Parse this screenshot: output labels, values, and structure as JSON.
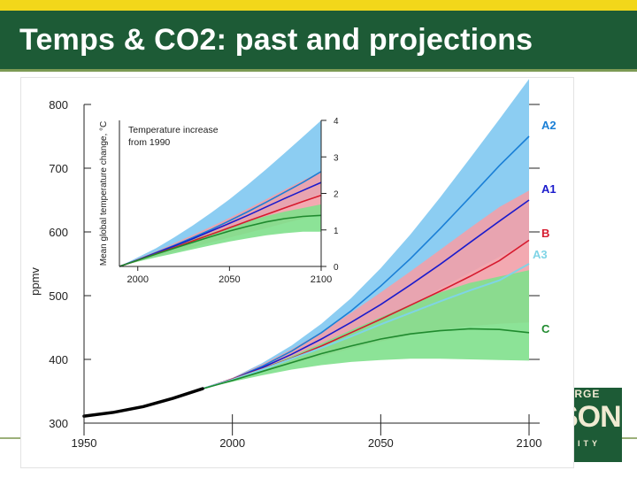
{
  "slide": {
    "title": "Temps & CO2: past and projections"
  },
  "logo": {
    "line1": "ORGE",
    "line2": "SON",
    "line3": "SITY"
  },
  "colors": {
    "header_bg": "#1d5b36",
    "accent_yellow": "#f2d71a",
    "A2": "#1a7fd6",
    "A2_band": "#8ccdf2",
    "A1": "#1b1bcc",
    "B": "#d61a2e",
    "B_band": "#f2a0a8",
    "A3": "#7fd4e6",
    "C": "#1f8a2e",
    "C_band": "#7fe08c",
    "historical": "#000000"
  },
  "chart_data": [
    {
      "type": "line",
      "title": "",
      "xlabel": "",
      "ylabel": "ppmv",
      "xlim": [
        1950,
        2100
      ],
      "ylim": [
        300,
        800
      ],
      "x_ticks": [
        "1950",
        "2000",
        "2050",
        "2100"
      ],
      "y_ticks": [
        "300",
        "400",
        "500",
        "600",
        "700",
        "800"
      ],
      "historical": {
        "x": [
          1950,
          1960,
          1970,
          1980,
          1990
        ],
        "values": [
          311,
          317,
          326,
          339,
          354
        ]
      },
      "series": [
        {
          "name": "A2",
          "x": [
            1990,
            2000,
            2010,
            2020,
            2030,
            2040,
            2050,
            2060,
            2070,
            2080,
            2090,
            2100
          ],
          "values": [
            354,
            369,
            389,
            413,
            442,
            476,
            515,
            558,
            605,
            654,
            704,
            750
          ]
        },
        {
          "name": "A1",
          "x": [
            1990,
            2000,
            2010,
            2020,
            2030,
            2040,
            2050,
            2060,
            2070,
            2080,
            2090,
            2100
          ],
          "values": [
            354,
            369,
            387,
            408,
            432,
            458,
            486,
            517,
            549,
            583,
            617,
            650
          ]
        },
        {
          "name": "B",
          "x": [
            1990,
            2000,
            2010,
            2020,
            2030,
            2040,
            2050,
            2060,
            2070,
            2080,
            2090,
            2100
          ],
          "values": [
            354,
            369,
            385,
            402,
            421,
            442,
            463,
            485,
            507,
            530,
            555,
            587
          ]
        },
        {
          "name": "A3",
          "x": [
            1990,
            2000,
            2010,
            2020,
            2030,
            2040,
            2050,
            2060,
            2070,
            2080,
            2090,
            2100
          ],
          "values": [
            354,
            368,
            384,
            401,
            418,
            436,
            455,
            473,
            491,
            508,
            524,
            550
          ]
        },
        {
          "name": "C",
          "x": [
            1990,
            2000,
            2010,
            2020,
            2030,
            2040,
            2050,
            2060,
            2070,
            2080,
            2090,
            2100
          ],
          "values": [
            354,
            367,
            381,
            395,
            409,
            421,
            432,
            440,
            445,
            448,
            447,
            442
          ]
        }
      ],
      "bands": [
        {
          "name": "A2",
          "x": [
            1990,
            2000,
            2010,
            2020,
            2030,
            2040,
            2050,
            2060,
            2070,
            2080,
            2090,
            2100
          ],
          "low": [
            354,
            368,
            383,
            399,
            417,
            438,
            460,
            485,
            511,
            536,
            561,
            586
          ],
          "high": [
            354,
            371,
            394,
            422,
            456,
            496,
            543,
            596,
            654,
            715,
            777,
            840
          ]
        },
        {
          "name": "B",
          "x": [
            1990,
            2000,
            2010,
            2020,
            2030,
            2040,
            2050,
            2060,
            2070,
            2080,
            2090,
            2100
          ],
          "low": [
            354,
            367,
            380,
            393,
            405,
            417,
            428,
            438,
            446,
            452,
            456,
            458
          ],
          "high": [
            354,
            371,
            392,
            416,
            443,
            473,
            505,
            538,
            572,
            606,
            639,
            665
          ]
        },
        {
          "name": "C",
          "x": [
            1990,
            2000,
            2010,
            2020,
            2030,
            2040,
            2050,
            2060,
            2070,
            2080,
            2090,
            2100
          ],
          "low": [
            354,
            365,
            375,
            384,
            391,
            396,
            399,
            401,
            401,
            400,
            399,
            398
          ],
          "high": [
            354,
            369,
            386,
            405,
            425,
            446,
            466,
            486,
            505,
            520,
            530,
            540
          ]
        }
      ]
    },
    {
      "type": "line",
      "title": "Temperature increase from 1990",
      "title_lines": [
        "Temperature increase",
        "from 1990"
      ],
      "xlabel": "",
      "ylabel": "Mean global temperature change, °C",
      "xlim": [
        1990,
        2100
      ],
      "ylim": [
        0,
        4
      ],
      "x_ticks": [
        "2000",
        "2050",
        "2100"
      ],
      "y_ticks": [
        "0",
        "1",
        "2",
        "3",
        "4"
      ],
      "series": [
        {
          "name": "A2",
          "x": [
            1990,
            2000,
            2010,
            2020,
            2030,
            2040,
            2050,
            2060,
            2070,
            2080,
            2090,
            2100
          ],
          "values": [
            0,
            0.18,
            0.38,
            0.58,
            0.79,
            1.01,
            1.25,
            1.5,
            1.76,
            2.03,
            2.3,
            2.6
          ]
        },
        {
          "name": "A1",
          "x": [
            1990,
            2000,
            2010,
            2020,
            2030,
            2040,
            2050,
            2060,
            2070,
            2080,
            2090,
            2100
          ],
          "values": [
            0,
            0.18,
            0.37,
            0.56,
            0.76,
            0.97,
            1.18,
            1.4,
            1.63,
            1.86,
            2.08,
            2.3
          ]
        },
        {
          "name": "B",
          "x": [
            1990,
            2000,
            2010,
            2020,
            2030,
            2040,
            2050,
            2060,
            2070,
            2080,
            2090,
            2100
          ],
          "values": [
            0,
            0.17,
            0.35,
            0.52,
            0.7,
            0.88,
            1.06,
            1.24,
            1.42,
            1.6,
            1.78,
            1.95
          ]
        },
        {
          "name": "C",
          "x": [
            1990,
            2000,
            2010,
            2020,
            2030,
            2040,
            2050,
            2060,
            2070,
            2080,
            2090,
            2100
          ],
          "values": [
            0,
            0.17,
            0.34,
            0.5,
            0.66,
            0.82,
            0.97,
            1.1,
            1.22,
            1.31,
            1.37,
            1.4
          ]
        }
      ],
      "bands": [
        {
          "name": "A2",
          "x": [
            1990,
            2000,
            2010,
            2020,
            2030,
            2040,
            2050,
            2060,
            2070,
            2080,
            2090,
            2100
          ],
          "low": [
            0,
            0.15,
            0.3,
            0.46,
            0.62,
            0.8,
            0.98,
            1.17,
            1.37,
            1.58,
            1.79,
            2.0
          ],
          "high": [
            0,
            0.25,
            0.5,
            0.8,
            1.12,
            1.47,
            1.84,
            2.24,
            2.66,
            3.1,
            3.55,
            4.0
          ]
        },
        {
          "name": "B",
          "x": [
            1990,
            2000,
            2010,
            2020,
            2030,
            2040,
            2050,
            2060,
            2070,
            2080,
            2090,
            2100
          ],
          "low": [
            0,
            0.14,
            0.27,
            0.4,
            0.53,
            0.66,
            0.79,
            0.92,
            1.05,
            1.18,
            1.31,
            1.45
          ],
          "high": [
            0,
            0.21,
            0.42,
            0.64,
            0.86,
            1.09,
            1.33,
            1.58,
            1.84,
            2.1,
            2.36,
            2.6
          ]
        },
        {
          "name": "C",
          "x": [
            1990,
            2000,
            2010,
            2020,
            2030,
            2040,
            2050,
            2060,
            2070,
            2080,
            2090,
            2100
          ],
          "low": [
            0,
            0.13,
            0.25,
            0.36,
            0.47,
            0.58,
            0.68,
            0.77,
            0.85,
            0.91,
            0.95,
            0.95
          ],
          "high": [
            0,
            0.19,
            0.38,
            0.56,
            0.74,
            0.91,
            1.08,
            1.24,
            1.38,
            1.5,
            1.6,
            1.7
          ]
        }
      ]
    }
  ]
}
